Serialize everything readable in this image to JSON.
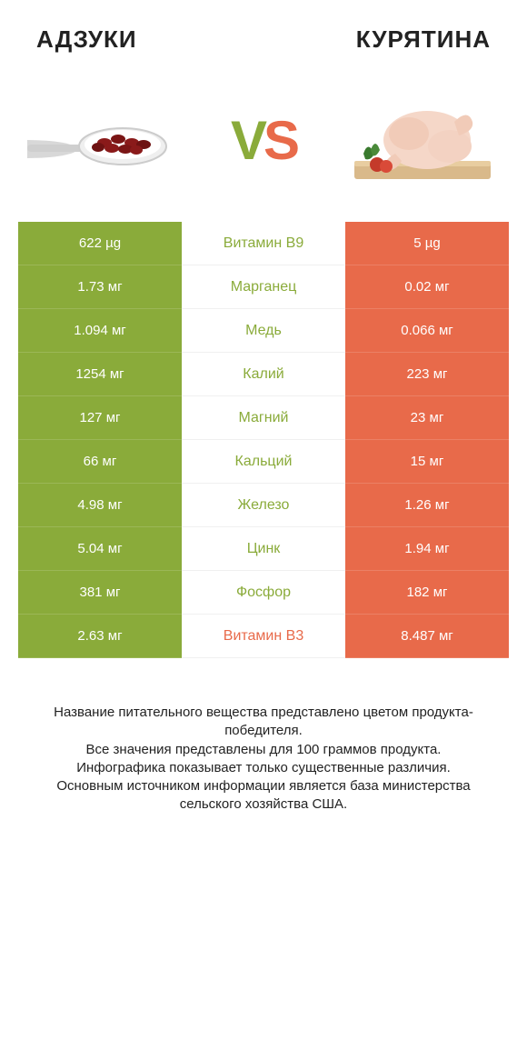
{
  "colors": {
    "left": "#8aab3a",
    "right": "#e86a4a",
    "left_text": "#ffffff",
    "right_text": "#ffffff",
    "mid_bg": "#ffffff",
    "divider": "#f0f0f0"
  },
  "header": {
    "left": "АДЗУКИ",
    "right": "КУРЯТИНА"
  },
  "vs": {
    "v": "V",
    "s": "S",
    "v_color": "#8aab3a",
    "s_color": "#e86a4a"
  },
  "rows": [
    {
      "left": "622 µg",
      "mid": "Витамин B9",
      "right": "5 µg",
      "winner": "left"
    },
    {
      "left": "1.73 мг",
      "mid": "Марганец",
      "right": "0.02 мг",
      "winner": "left"
    },
    {
      "left": "1.094 мг",
      "mid": "Медь",
      "right": "0.066 мг",
      "winner": "left"
    },
    {
      "left": "1254 мг",
      "mid": "Калий",
      "right": "223 мг",
      "winner": "left"
    },
    {
      "left": "127 мг",
      "mid": "Магний",
      "right": "23 мг",
      "winner": "left"
    },
    {
      "left": "66 мг",
      "mid": "Кальций",
      "right": "15 мг",
      "winner": "left"
    },
    {
      "left": "4.98 мг",
      "mid": "Железо",
      "right": "1.26 мг",
      "winner": "left"
    },
    {
      "left": "5.04 мг",
      "mid": "Цинк",
      "right": "1.94 мг",
      "winner": "left"
    },
    {
      "left": "381 мг",
      "mid": "Фосфор",
      "right": "182 мг",
      "winner": "left"
    },
    {
      "left": "2.63 мг",
      "mid": "Витамин B3",
      "right": "8.487 мг",
      "winner": "right"
    }
  ],
  "footer": {
    "line1": "Название питательного вещества представлено цветом продукта-победителя.",
    "line2": "Все значения представлены для 100 граммов продукта.",
    "line3": "Инфографика показывает только существенные различия.",
    "line4": "Основным источником информации является база министерства сельского хозяйства США."
  }
}
